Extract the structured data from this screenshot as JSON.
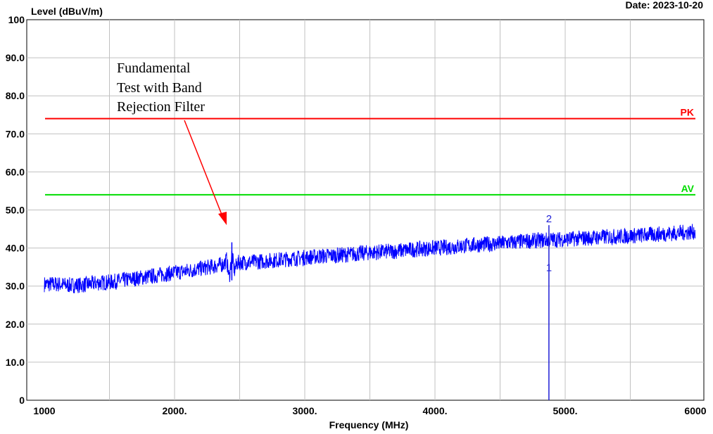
{
  "header": {
    "date_text": "Date: 2023-10-20"
  },
  "annotation": {
    "lines": [
      "Fundamental",
      "Test with Band",
      "Rejection Filter"
    ],
    "arrow_color": "#ff0000"
  },
  "colors": {
    "trace": "#0000ff",
    "pk": "#ff0000",
    "av": "#00dd00",
    "grid": "#c0c0c0",
    "marker": "#1f1fd6"
  },
  "chart_data": {
    "type": "line",
    "ylabel": "Level (dBuV/m)",
    "xlabel": "Frequency (MHz)",
    "xlim": [
      1000,
      6000
    ],
    "ylim": [
      0,
      100
    ],
    "x_ticks": [
      {
        "value": 1000,
        "label": "1000"
      },
      {
        "value": 2000,
        "label": "2000."
      },
      {
        "value": 3000,
        "label": "3000."
      },
      {
        "value": 4000,
        "label": "4000."
      },
      {
        "value": 5000,
        "label": "5000."
      },
      {
        "value": 6000,
        "label": "6000"
      }
    ],
    "y_ticks": [
      {
        "value": 0,
        "label": "0"
      },
      {
        "value": 10,
        "label": "10.0"
      },
      {
        "value": 20,
        "label": "20.0"
      },
      {
        "value": 30,
        "label": "30.0"
      },
      {
        "value": 40,
        "label": "40.0"
      },
      {
        "value": 50,
        "label": "50.0"
      },
      {
        "value": 60,
        "label": "60.0"
      },
      {
        "value": 70,
        "label": "70.0"
      },
      {
        "value": 80,
        "label": "80.0"
      },
      {
        "value": 90,
        "label": "90.0"
      },
      {
        "value": 100,
        "label": "100"
      }
    ],
    "grid": true,
    "limits": [
      {
        "name": "PK",
        "value": 74
      },
      {
        "name": "AV",
        "value": 54
      }
    ],
    "series": [
      {
        "x": [
          1000,
          1100,
          1200,
          1300,
          1400,
          1500,
          1600,
          1700,
          1800,
          1900,
          2000,
          2100,
          2200,
          2300,
          2380,
          2400,
          2420,
          2440,
          2460,
          2480,
          2500,
          2600,
          2700,
          2800,
          2900,
          3000,
          3100,
          3200,
          3300,
          3400,
          3500,
          3600,
          3700,
          3800,
          3900,
          4000,
          4100,
          4200,
          4300,
          4400,
          4500,
          4600,
          4700,
          4800,
          4900,
          5000,
          5100,
          5200,
          5300,
          5400,
          5500,
          5600,
          5700,
          5800,
          5900,
          6000
        ],
        "y": [
          30.5,
          30.5,
          30.2,
          30.3,
          30.8,
          31.0,
          31.5,
          32.0,
          32.5,
          33.0,
          33.5,
          34.0,
          34.6,
          35.2,
          35.8,
          37.0,
          32.0,
          38.5,
          34.0,
          36.0,
          36.2,
          36.3,
          36.6,
          36.9,
          37.2,
          37.5,
          37.8,
          38.0,
          38.2,
          38.5,
          38.8,
          39.0,
          39.2,
          39.5,
          39.8,
          40.0,
          40.2,
          40.5,
          40.8,
          41.0,
          41.2,
          41.5,
          41.8,
          42.0,
          42.2,
          42.3,
          42.5,
          42.7,
          42.9,
          43.0,
          43.2,
          43.4,
          43.6,
          43.8,
          44.0,
          44.3
        ]
      }
    ],
    "markers": [
      {
        "label": "1",
        "x": 4875,
        "y": 36.5
      },
      {
        "label": "2",
        "x": 4875,
        "y": 46.0
      }
    ]
  }
}
